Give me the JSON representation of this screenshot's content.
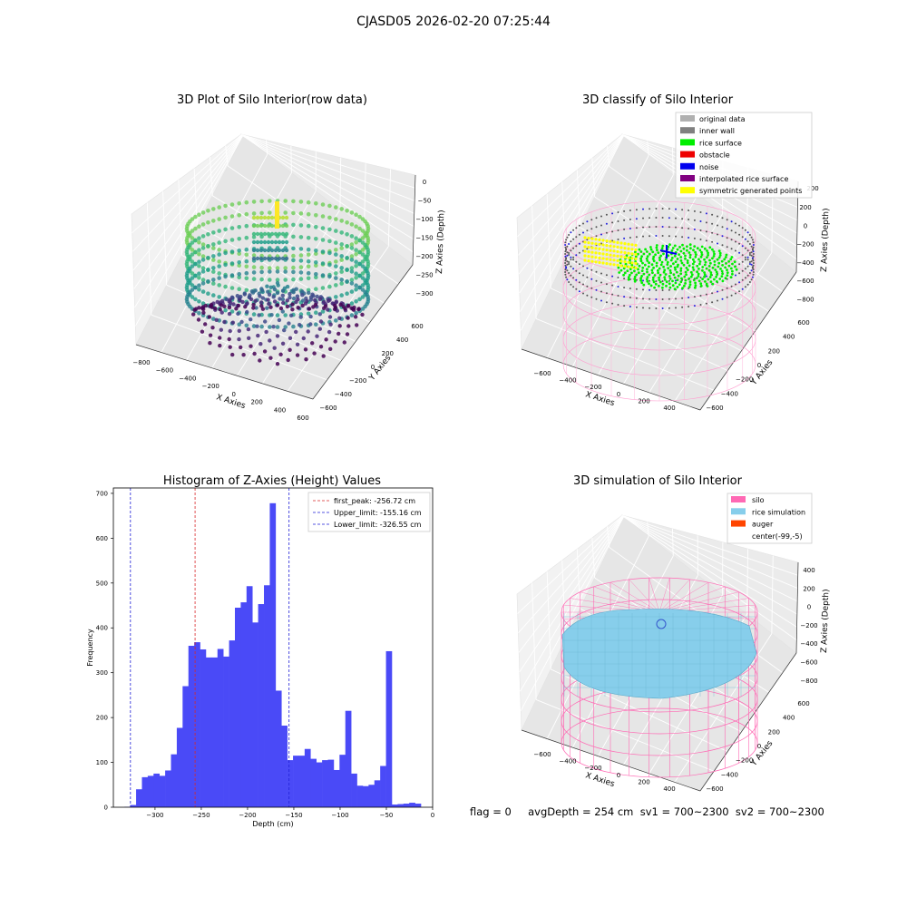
{
  "figure": {
    "suptitle": "CJASD05 2026-02-20 07:25:44",
    "footer": "flag = 0     avgDepth = 254 cm  sv1 = 700~2300  sv2 = 700~2300"
  },
  "colors": {
    "histogram_bars": "#4a4af7",
    "first_peak_line": "#d62728",
    "limit_lines": "#1f1fd6",
    "silo_pink": "#ff69b4",
    "rice_simulation": "#87ceeb",
    "auger": "#ff4500",
    "viridis_low": "#440154",
    "viridis_high": "#fde725"
  },
  "chart_data": [
    {
      "type": "scatter3d",
      "title": "3D Plot of Silo Interior(row data)",
      "xlabel": "X Axies",
      "ylabel": "Y Axies",
      "zlabel": "Z Axies (Depth)",
      "x_ticks": [
        "−800",
        "−600",
        "−400",
        "−200",
        "0",
        "200",
        "400",
        "600"
      ],
      "y_ticks": [
        "−600",
        "−400",
        "−200",
        "0",
        "200",
        "400",
        "600"
      ],
      "z_ticks": [
        "0",
        "−50",
        "−100",
        "−150",
        "−200",
        "−250",
        "−300"
      ],
      "colormap": "viridis"
    },
    {
      "type": "scatter3d",
      "title": "3D classify of Silo Interior",
      "xlabel": "X Axies",
      "ylabel": "Y Axies",
      "zlabel": "Z Axies (Depth)",
      "x_ticks": [
        "−600",
        "−400",
        "−200",
        "0",
        "200",
        "400"
      ],
      "y_ticks": [
        "−600",
        "−400",
        "−200",
        "0",
        "200",
        "400",
        "600"
      ],
      "z_ticks": [
        "200",
        "0",
        "−200",
        "−400",
        "−600",
        "−800"
      ],
      "z_ticks_partial": [
        "400",
        "200"
      ],
      "legend": [
        {
          "label": "original data",
          "color": "#b0b0b0"
        },
        {
          "label": "inner wall",
          "color": "#808080"
        },
        {
          "label": "rice surface",
          "color": "#00ee00"
        },
        {
          "label": "obstacle",
          "color": "#ee0000"
        },
        {
          "label": "noise",
          "color": "#0000ee"
        },
        {
          "label": "interpolated rice surface",
          "color": "#800080"
        },
        {
          "label": "symmetric generated points",
          "color": "#ffff00"
        }
      ]
    },
    {
      "type": "bar",
      "title": "Histogram of Z-Axies (Height) Values",
      "xlabel": "Depth (cm)",
      "ylabel": "Frequency",
      "xlim": [
        -345,
        0
      ],
      "ylim": [
        0,
        712
      ],
      "x_ticks": [
        "−300",
        "−250",
        "−200",
        "−150",
        "−100",
        "−50",
        "0"
      ],
      "x_tick_values": [
        -300,
        -250,
        -200,
        -150,
        -100,
        -50,
        0
      ],
      "y_ticks": [
        "0",
        "100",
        "200",
        "300",
        "400",
        "500",
        "600",
        "700"
      ],
      "y_tick_values": [
        0,
        100,
        200,
        300,
        400,
        500,
        600,
        700
      ],
      "bin_start": -333,
      "bin_width": 6.28,
      "values": [
        1,
        5,
        40,
        67,
        70,
        75,
        70,
        82,
        118,
        177,
        270,
        360,
        368,
        352,
        334,
        334,
        353,
        336,
        372,
        445,
        457,
        493,
        412,
        453,
        495,
        678,
        260,
        182,
        105,
        115,
        115,
        130,
        108,
        100,
        105,
        106,
        83,
        117,
        215,
        75,
        48,
        47,
        50,
        60,
        92,
        348,
        6,
        7,
        8,
        10,
        8
      ],
      "vlines": [
        {
          "label": "first_peak: -256.72 cm",
          "x": -256.72,
          "color": "#d62728"
        },
        {
          "label": "Upper_limit: -155.16 cm",
          "x": -155.16,
          "color": "#1f1fd6"
        },
        {
          "label": "Lower_limit: -326.55 cm",
          "x": -326.55,
          "color": "#1f1fd6"
        }
      ]
    },
    {
      "type": "surface3d",
      "title": "3D simulation of Silo Interior",
      "xlabel": "X Axies",
      "ylabel": "Y Axies",
      "zlabel": "Z Axies (Depth)",
      "x_ticks": [
        "−600",
        "−400",
        "−200",
        "0",
        "200",
        "400"
      ],
      "y_ticks": [
        "−600",
        "−400",
        "−200",
        "0",
        "200",
        "400",
        "600"
      ],
      "z_ticks": [
        "400",
        "200",
        "0",
        "−200",
        "−400",
        "−600",
        "−800"
      ],
      "legend": [
        {
          "label": "silo",
          "color": "#ff69b4"
        },
        {
          "label": "rice simulation",
          "color": "#87ceeb"
        },
        {
          "label": "auger",
          "color": "#ff4500"
        },
        {
          "label": "center(-99,-5)",
          "color": ""
        }
      ]
    }
  ]
}
